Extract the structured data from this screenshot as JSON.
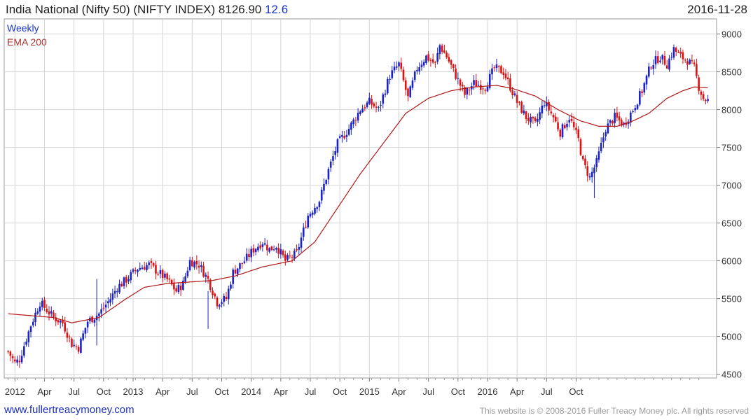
{
  "header": {
    "title": "India National (Nifty 50) (NIFTY INDEX)",
    "last": "8126.90",
    "change": "12.6",
    "date": "2016-11-28"
  },
  "footer": {
    "link": "www.fullertreacymoney.com",
    "copyright": "This website is © 2008-2016 Fuller Treacy Money plc. All rights reserved"
  },
  "colors": {
    "up": "#1a22c8",
    "down": "#e01010",
    "ema": "#b01818",
    "grid": "#d4d4d4",
    "legend_weekly": "#1a33cc",
    "legend_ema": "#b03030"
  },
  "chart_data": {
    "type": "candlestick",
    "legend": [
      "Weekly",
      "EMA 200"
    ],
    "y_ticks": [
      4500,
      5000,
      5500,
      6000,
      6500,
      7000,
      7500,
      8000,
      8500,
      9000
    ],
    "ylim": [
      4450,
      9200
    ],
    "x_labels": [
      "2012",
      "Apr",
      "Jul",
      "Oct",
      "2013",
      "Apr",
      "Jul",
      "Oct",
      "2014",
      "Apr",
      "Jul",
      "Oct",
      "2015",
      "Apr",
      "Jul",
      "Oct",
      "2016",
      "Apr",
      "Jul",
      "Oct"
    ],
    "price_path": [
      [
        0,
        4800
      ],
      [
        3,
        4650
      ],
      [
        5,
        4700
      ],
      [
        10,
        5150
      ],
      [
        14,
        5450
      ],
      [
        17,
        5350
      ],
      [
        20,
        5250
      ],
      [
        24,
        5180
      ],
      [
        28,
        4900
      ],
      [
        31,
        4850
      ],
      [
        35,
        5200
      ],
      [
        40,
        5300
      ],
      [
        45,
        5500
      ],
      [
        48,
        5650
      ],
      [
        52,
        5750
      ],
      [
        57,
        5900
      ],
      [
        62,
        5950
      ],
      [
        66,
        5850
      ],
      [
        70,
        5750
      ],
      [
        74,
        5600
      ],
      [
        77,
        5700
      ],
      [
        80,
        6000
      ],
      [
        84,
        5950
      ],
      [
        88,
        5750
      ],
      [
        92,
        5450
      ],
      [
        96,
        5500
      ],
      [
        99,
        5850
      ],
      [
        104,
        6000
      ],
      [
        108,
        6150
      ],
      [
        112,
        6250
      ],
      [
        115,
        6150
      ],
      [
        118,
        6200
      ],
      [
        122,
        6000
      ],
      [
        127,
        6100
      ],
      [
        132,
        6600
      ],
      [
        137,
        6800
      ],
      [
        141,
        7200
      ],
      [
        145,
        7550
      ],
      [
        150,
        7750
      ],
      [
        155,
        8000
      ],
      [
        159,
        8100
      ],
      [
        163,
        8000
      ],
      [
        168,
        8450
      ],
      [
        172,
        8600
      ],
      [
        176,
        8150
      ],
      [
        180,
        8550
      ],
      [
        184,
        8700
      ],
      [
        188,
        8600
      ],
      [
        190,
        8850
      ],
      [
        193,
        8700
      ],
      [
        197,
        8450
      ],
      [
        201,
        8200
      ],
      [
        205,
        8350
      ],
      [
        210,
        8300
      ],
      [
        214,
        8550
      ],
      [
        218,
        8500
      ],
      [
        221,
        8300
      ],
      [
        224,
        8100
      ],
      [
        228,
        7900
      ],
      [
        232,
        7800
      ],
      [
        236,
        8100
      ],
      [
        240,
        7900
      ],
      [
        243,
        7700
      ],
      [
        247,
        7900
      ],
      [
        251,
        7600
      ],
      [
        253,
        7300
      ],
      [
        256,
        7100
      ],
      [
        259,
        7300
      ],
      [
        263,
        7750
      ],
      [
        267,
        7900
      ],
      [
        271,
        7800
      ],
      [
        275,
        8000
      ],
      [
        279,
        8250
      ],
      [
        283,
        8600
      ],
      [
        287,
        8700
      ],
      [
        290,
        8600
      ],
      [
        293,
        8800
      ],
      [
        296,
        8700
      ],
      [
        299,
        8650
      ],
      [
        302,
        8550
      ],
      [
        304,
        8300
      ],
      [
        306,
        8150
      ],
      [
        308,
        8120
      ]
    ],
    "ema_path": [
      [
        0,
        5300
      ],
      [
        20,
        5250
      ],
      [
        28,
        5180
      ],
      [
        40,
        5250
      ],
      [
        52,
        5500
      ],
      [
        60,
        5650
      ],
      [
        70,
        5700
      ],
      [
        80,
        5720
      ],
      [
        90,
        5740
      ],
      [
        100,
        5800
      ],
      [
        112,
        5920
      ],
      [
        125,
        6000
      ],
      [
        135,
        6250
      ],
      [
        145,
        6700
      ],
      [
        155,
        7150
      ],
      [
        165,
        7550
      ],
      [
        175,
        7950
      ],
      [
        185,
        8150
      ],
      [
        195,
        8250
      ],
      [
        205,
        8300
      ],
      [
        215,
        8320
      ],
      [
        222,
        8280
      ],
      [
        232,
        8180
      ],
      [
        242,
        8000
      ],
      [
        252,
        7850
      ],
      [
        260,
        7780
      ],
      [
        268,
        7780
      ],
      [
        275,
        7850
      ],
      [
        282,
        7950
      ],
      [
        290,
        8150
      ],
      [
        297,
        8250
      ],
      [
        302,
        8300
      ],
      [
        308,
        8290
      ]
    ]
  }
}
